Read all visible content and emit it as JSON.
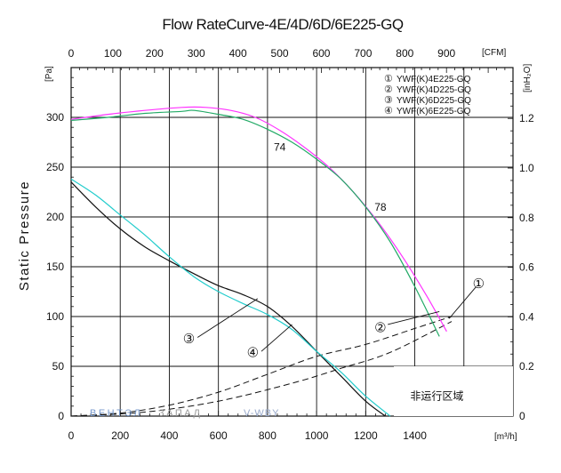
{
  "chart_data": {
    "type": "line",
    "title": "Flow RateCurve-4E/4D/6D/6E225-GQ",
    "ylabel": "Static Pressure",
    "y_unit": "[Pa]",
    "x_unit": "[m³/h]",
    "x_top_unit": "[CFM]",
    "y_right_unit": "[inH₂O]",
    "xlim": [
      0,
      1800
    ],
    "ylim": [
      0,
      350
    ],
    "x_ticks": [
      "0",
      "200",
      "400",
      "600",
      "800",
      "1000",
      "1200",
      "1400"
    ],
    "x_top_ticks": [
      "0",
      "100",
      "200",
      "300",
      "400",
      "500",
      "600",
      "700",
      "800",
      "900"
    ],
    "y_ticks": [
      "0",
      "50",
      "100",
      "150",
      "200",
      "250",
      "300"
    ],
    "y_right_ticks": [
      "0",
      "0.2",
      "0.4",
      "0.6",
      "0.8",
      "1.0",
      "1.2"
    ],
    "grid": true,
    "legend_position": "top-right",
    "legend": [
      {
        "symbol": "①",
        "label": "YWF(K)4E225-GQ"
      },
      {
        "symbol": "②",
        "label": "YWF(K)4D225-GQ"
      },
      {
        "symbol": "③",
        "label": "YWF(K)6D225-GQ"
      },
      {
        "symbol": "④",
        "label": "YWF(K)6E225-GQ"
      }
    ],
    "series": [
      {
        "color": "#ff33ff",
        "x": [
          0,
          150,
          300,
          450,
          550,
          650,
          750,
          850,
          950,
          1050,
          1150,
          1250,
          1350,
          1450,
          1530
        ],
        "y": [
          298,
          303,
          307,
          310,
          310,
          307,
          300,
          287,
          270,
          250,
          225,
          195,
          160,
          120,
          85
        ]
      },
      {
        "color": "#22aa66",
        "x": [
          0,
          150,
          300,
          450,
          500,
          600,
          700,
          800,
          900,
          1000,
          1100,
          1200,
          1300,
          1400,
          1500
        ],
        "y": [
          297,
          300,
          304,
          306,
          307,
          303,
          298,
          288,
          275,
          258,
          238,
          210,
          175,
          130,
          80
        ]
      },
      {
        "color": "#111111",
        "x": [
          0,
          100,
          200,
          300,
          400,
          500,
          600,
          700,
          800,
          900,
          1000,
          1100,
          1200,
          1280
        ],
        "y": [
          235,
          210,
          188,
          170,
          156,
          143,
          131,
          122,
          110,
          90,
          65,
          40,
          15,
          0
        ]
      },
      {
        "color": "#22cccc",
        "x": [
          0,
          100,
          200,
          300,
          400,
          500,
          600,
          700,
          800,
          900,
          1000,
          1100,
          1200,
          1300
        ],
        "y": [
          238,
          222,
          202,
          182,
          160,
          140,
          125,
          113,
          102,
          87,
          65,
          44,
          20,
          0
        ]
      }
    ],
    "system_curves": [
      {
        "x": [
          0,
          200,
          400,
          600,
          800,
          1000,
          1200,
          1400,
          1550
        ],
        "y": [
          0,
          3,
          11,
          24,
          42,
          60,
          72,
          88,
          100
        ]
      },
      {
        "x": [
          0,
          300,
          600,
          900,
          1100,
          1300,
          1550
        ],
        "y": [
          0,
          4,
          15,
          33,
          48,
          64,
          95
        ]
      }
    ],
    "annotations": [
      {
        "text": "74",
        "x": 850,
        "y": 270
      },
      {
        "text": "78",
        "x": 1260,
        "y": 210
      },
      {
        "text": "①",
        "x": 1660,
        "y": 132
      },
      {
        "text": "②",
        "x": 1260,
        "y": 88
      },
      {
        "text": "③",
        "x": 480,
        "y": 77
      },
      {
        "text": "④",
        "x": 740,
        "y": 63
      },
      {
        "text": "非运行区域",
        "x": 1490,
        "y": 20
      }
    ],
    "watermark": [
      "ВЕНТЭЛ",
      "ЗАПАД",
      "V-WBY"
    ]
  }
}
